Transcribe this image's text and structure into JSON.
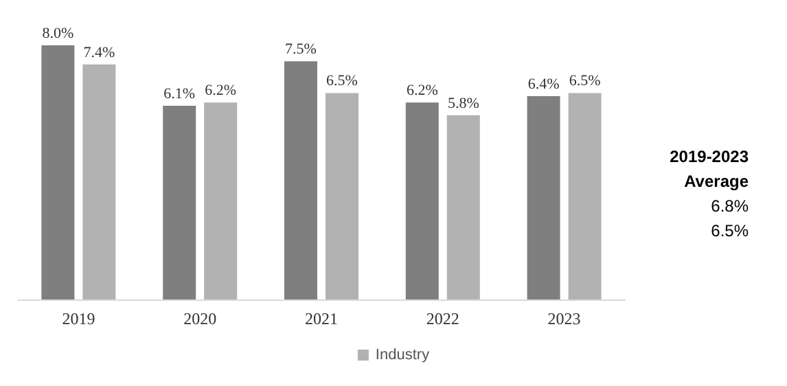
{
  "chart_data": {
    "type": "bar",
    "categories": [
      "2019",
      "2020",
      "2021",
      "2022",
      "2023"
    ],
    "series": [
      {
        "color": "#7f7f7f",
        "values": [
          8.0,
          6.1,
          7.5,
          6.2,
          6.4
        ],
        "value_labels": [
          "8.0%",
          "6.1%",
          "7.5%",
          "6.2%",
          "6.4%"
        ]
      },
      {
        "name": "Industry",
        "color": "#b2b2b2",
        "values": [
          7.4,
          6.2,
          6.5,
          5.8,
          6.5
        ],
        "value_labels": [
          "7.4%",
          "6.2%",
          "6.5%",
          "5.8%",
          "6.5%"
        ]
      }
    ],
    "legend": "bottom",
    "grid": false,
    "annotations": [
      "2019-2023",
      "Average",
      "6.8%",
      "6.5%"
    ]
  }
}
